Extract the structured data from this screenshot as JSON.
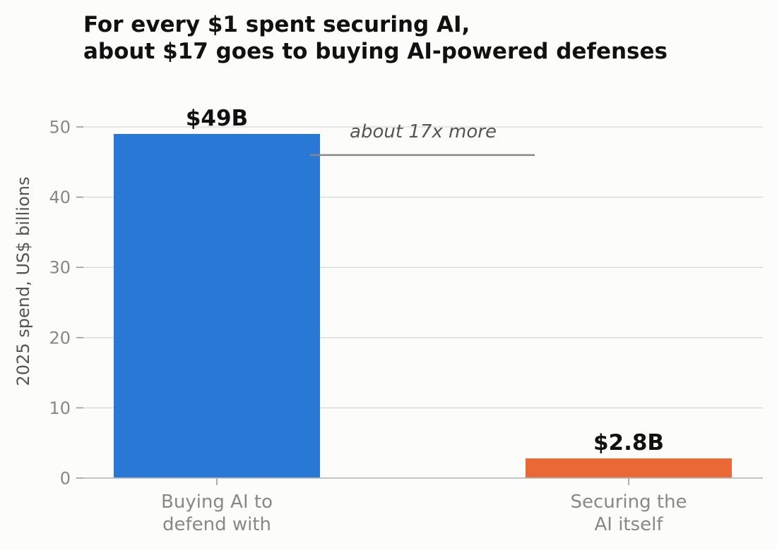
{
  "chart_data": {
    "type": "bar",
    "title_lines": [
      "For every $1 spent securing AI,",
      "about $17 goes to buying AI-powered defenses"
    ],
    "ylabel": "2025 spend, US$ billions",
    "xlabel": "",
    "ylim": [
      0,
      50
    ],
    "yticks": [
      0,
      10,
      20,
      30,
      40,
      50
    ],
    "grid": true,
    "categories": [
      [
        "Buying AI to",
        "defend with"
      ],
      [
        "Securing the",
        "AI itself"
      ]
    ],
    "values": [
      49,
      2.8
    ],
    "value_labels": [
      "$49B",
      "$2.8B"
    ],
    "colors": [
      "#2a78d5",
      "#ea6835"
    ],
    "annotation": {
      "text": "about 17x more",
      "y": 46
    }
  }
}
